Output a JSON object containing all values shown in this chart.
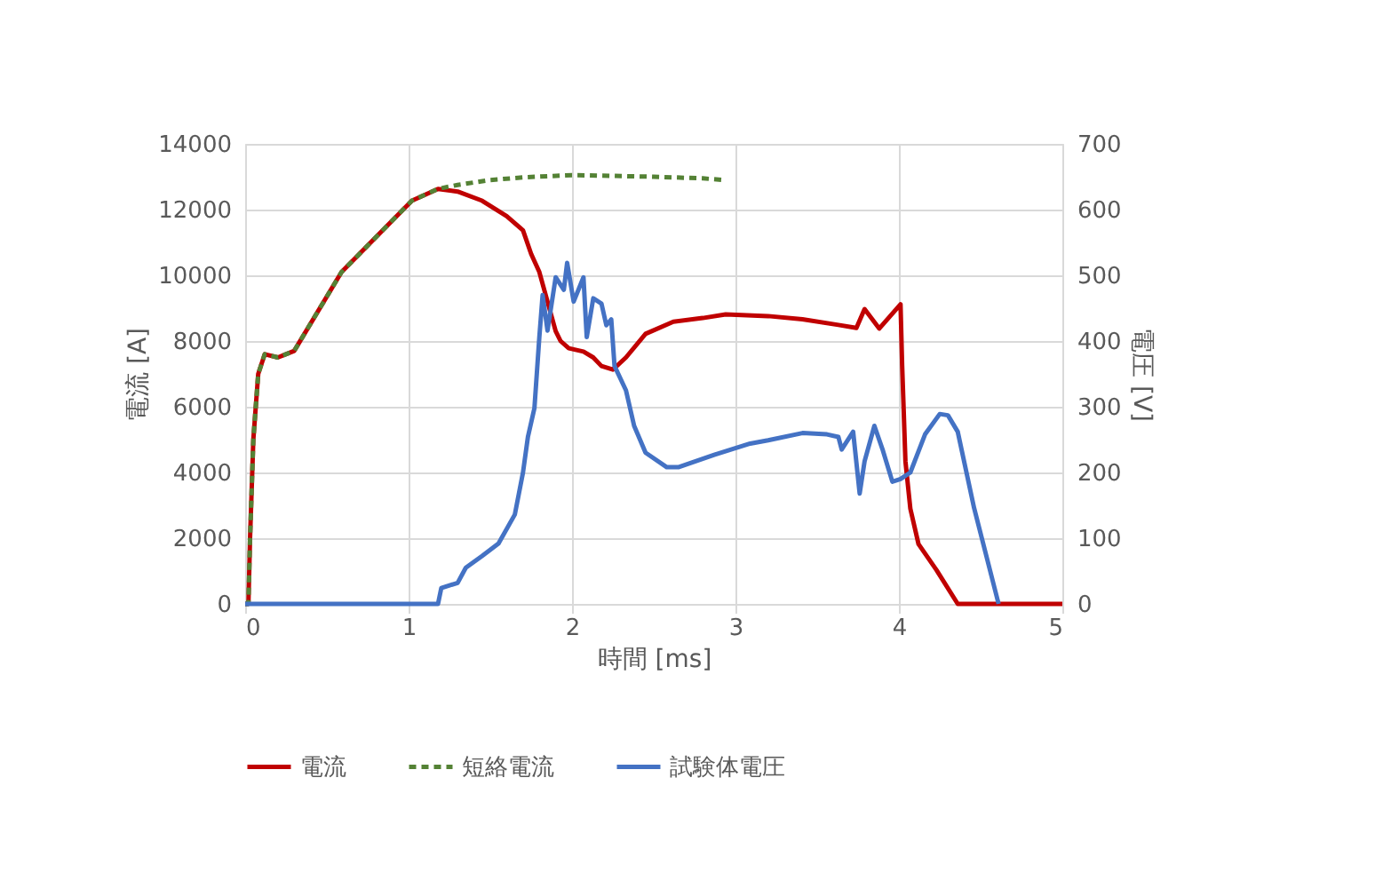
{
  "chart_data": {
    "type": "line",
    "xlabel": "時間 [ms]",
    "ylabel": "電流 [A]",
    "y2label": "電圧 [V]",
    "xlim": [
      0,
      5
    ],
    "xticks": [
      0,
      1,
      2,
      3,
      4,
      5
    ],
    "ylim": [
      0,
      14000
    ],
    "yticks": [
      0,
      2000,
      4000,
      6000,
      8000,
      10000,
      12000,
      14000
    ],
    "y2lim": [
      0,
      700
    ],
    "y2ticks": [
      0,
      100,
      200,
      300,
      400,
      500,
      600,
      700
    ],
    "grid": true,
    "legend": "bottom",
    "marker": "none",
    "series": [
      {
        "name": "電流",
        "color": "#c00000",
        "line_style": "solid",
        "x": [
          0,
          0.02,
          0.03,
          0.05,
          0.08,
          0.12,
          0.2,
          0.3,
          0.59,
          1.02,
          1.18,
          1.3,
          1.45,
          1.6,
          1.7,
          1.75,
          1.8,
          1.85,
          1.9,
          1.93,
          1.98,
          2.07,
          2.13,
          2.18,
          2.25,
          2.33,
          2.45,
          2.62,
          2.8,
          2.94,
          3.2,
          3.41,
          3.63,
          3.74,
          3.79,
          3.88,
          4.01,
          4.02,
          4.04,
          4.07,
          4.12,
          4.23,
          4.36,
          5
        ],
        "values": [
          0,
          0,
          2000,
          5000,
          7000,
          7600,
          7500,
          7700,
          10100,
          12270,
          12630,
          12550,
          12270,
          11800,
          11370,
          10650,
          10100,
          9200,
          8300,
          8000,
          7780,
          7680,
          7500,
          7240,
          7130,
          7500,
          8220,
          8590,
          8700,
          8810,
          8760,
          8660,
          8490,
          8400,
          8970,
          8380,
          9120,
          7240,
          4340,
          2900,
          1820,
          1030,
          0,
          0
        ]
      },
      {
        "name": "短絡電流",
        "color": "#548235",
        "line_style": "dashed",
        "x": [
          0,
          0.02,
          0.03,
          0.05,
          0.08,
          0.12,
          0.2,
          0.3,
          0.59,
          1.02,
          1.18,
          1.3,
          1.5,
          1.7,
          2.0,
          2.5,
          2.8,
          2.93
        ],
        "values": [
          0,
          0,
          2000,
          5000,
          7000,
          7600,
          7500,
          7700,
          10100,
          12270,
          12630,
          12750,
          12900,
          12980,
          13050,
          13000,
          12950,
          12900
        ]
      },
      {
        "name": "試験体電圧",
        "color": "#4472c4",
        "line_style": "solid",
        "axis": "y2",
        "x": [
          0,
          1.18,
          1.2,
          1.3,
          1.35,
          1.45,
          1.55,
          1.65,
          1.7,
          1.73,
          1.77,
          1.8,
          1.82,
          1.85,
          1.9,
          1.95,
          1.97,
          2.01,
          2.07,
          2.09,
          2.13,
          2.18,
          2.21,
          2.24,
          2.26,
          2.33,
          2.38,
          2.45,
          2.58,
          2.65,
          2.87,
          3.09,
          3.2,
          3.41,
          3.56,
          3.63,
          3.65,
          3.72,
          3.76,
          3.79,
          3.85,
          3.9,
          3.96,
          4.01,
          4.07,
          4.16,
          4.25,
          4.3,
          4.36,
          4.46,
          4.61
        ],
        "values": [
          0,
          0,
          24,
          32,
          55,
          73,
          92,
          136,
          200,
          254,
          298,
          406,
          470,
          416,
          497,
          478,
          519,
          460,
          497,
          406,
          465,
          457,
          424,
          433,
          362,
          325,
          271,
          230,
          208,
          208,
          227,
          244,
          249,
          260,
          258,
          254,
          235,
          262,
          168,
          217,
          271,
          235,
          186,
          190,
          200,
          258,
          289,
          287,
          262,
          146,
          0
        ]
      }
    ]
  }
}
